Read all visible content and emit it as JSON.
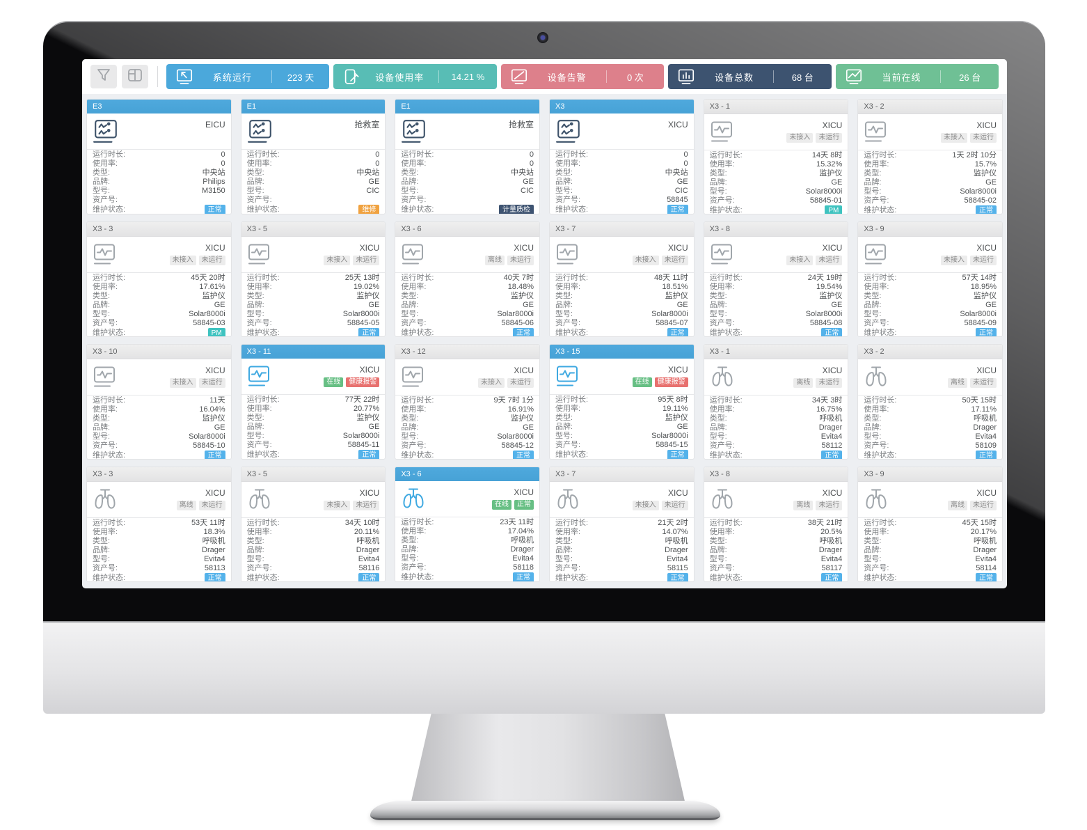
{
  "toolbar": {
    "buttons": [
      {
        "name": "filter-button",
        "icon": "funnel-icon"
      },
      {
        "name": "layout-button",
        "icon": "layout-icon"
      }
    ],
    "stats": [
      {
        "name": "system-runtime",
        "icon": "screen-cursor-icon",
        "label": "系统运行",
        "value": "223 天",
        "color": "#4BA8DB"
      },
      {
        "name": "device-usage",
        "icon": "tablet-pen-icon",
        "label": "设备使用率",
        "value": "14.21 %",
        "color": "#58BDB5"
      },
      {
        "name": "device-alarm",
        "icon": "screen-slash-icon",
        "label": "设备告警",
        "value": "0 次",
        "color": "#DD808B"
      },
      {
        "name": "device-total",
        "icon": "screen-bars-icon",
        "label": "设备总数",
        "value": "68 台",
        "color": "#3D5370"
      },
      {
        "name": "online-now",
        "icon": "screen-check-icon",
        "label": "当前在线",
        "value": "26 台",
        "color": "#6FC095"
      }
    ]
  },
  "field_labels": {
    "runtime": "运行时长:",
    "usage": "使用率:",
    "type": "类型:",
    "brand": "品牌:",
    "model": "型号:",
    "asset": "资产号:",
    "status": "维护状态:"
  },
  "colors": {
    "header_blue": "#4FA9DD",
    "icon": {
      "navy": "#3D5269",
      "grey": "#A0A6AB",
      "blue": "#3FA9E1"
    },
    "status": {
      "normal": "#54B2EA",
      "repair": "#F0A240",
      "metrology": "#3E5371",
      "pm": "#3FC3C0"
    },
    "badge": {
      "grey": {
        "bg": "#ECECEC",
        "fg": "#8A8A8A"
      },
      "green": {
        "bg": "#67BF84",
        "fg": "#FFFFFF"
      },
      "red": {
        "bg": "#E8716F",
        "fg": "#FFFFFF"
      }
    }
  },
  "cards": [
    {
      "id": "E3",
      "header": "blue",
      "icon": "central-station-icon",
      "icon_color": "navy",
      "location": "EICU",
      "badges": [],
      "runtime": "0",
      "usage": "0",
      "type": "中央站",
      "brand": "Philips",
      "model": "M3150",
      "asset": "",
      "status": {
        "text": "正常",
        "style": "normal"
      }
    },
    {
      "id": "E1",
      "header": "blue",
      "icon": "central-station-icon",
      "icon_color": "navy",
      "location": "抢救室",
      "badges": [],
      "runtime": "0",
      "usage": "0",
      "type": "中央站",
      "brand": "GE",
      "model": "CIC",
      "asset": "",
      "status": {
        "text": "维修",
        "style": "repair"
      }
    },
    {
      "id": "E1",
      "header": "blue",
      "icon": "central-station-icon",
      "icon_color": "navy",
      "location": "抢救室",
      "badges": [],
      "runtime": "0",
      "usage": "0",
      "type": "中央站",
      "brand": "GE",
      "model": "CIC",
      "asset": "",
      "status": {
        "text": "计量质检",
        "style": "metrology"
      }
    },
    {
      "id": "X3",
      "header": "blue",
      "icon": "central-station-icon",
      "icon_color": "navy",
      "location": "XICU",
      "badges": [],
      "runtime": "0",
      "usage": "0",
      "type": "中央站",
      "brand": "GE",
      "model": "CIC",
      "asset": "58845",
      "status": {
        "text": "正常",
        "style": "normal"
      }
    },
    {
      "id": "X3 - 1",
      "header": "grey",
      "icon": "patient-monitor-icon",
      "icon_color": "grey",
      "location": "XICU",
      "badges": [
        {
          "text": "未接入",
          "style": "grey"
        },
        {
          "text": "未运行",
          "style": "grey"
        }
      ],
      "runtime": "14天 8时",
      "usage": "15.32%",
      "type": "监护仪",
      "brand": "GE",
      "model": "Solar8000i",
      "asset": "58845-01",
      "status": {
        "text": "PM",
        "style": "pm"
      }
    },
    {
      "id": "X3 - 2",
      "header": "grey",
      "icon": "patient-monitor-icon",
      "icon_color": "grey",
      "location": "XICU",
      "badges": [
        {
          "text": "未接入",
          "style": "grey"
        },
        {
          "text": "未运行",
          "style": "grey"
        }
      ],
      "runtime": "1天 2时 10分",
      "usage": "15.7%",
      "type": "监护仪",
      "brand": "GE",
      "model": "Solar8000i",
      "asset": "58845-02",
      "status": {
        "text": "正常",
        "style": "normal"
      }
    },
    {
      "id": "X3 - 3",
      "header": "grey",
      "icon": "patient-monitor-icon",
      "icon_color": "grey",
      "location": "XICU",
      "badges": [
        {
          "text": "未接入",
          "style": "grey"
        },
        {
          "text": "未运行",
          "style": "grey"
        }
      ],
      "runtime": "45天 20时",
      "usage": "17.61%",
      "type": "监护仪",
      "brand": "GE",
      "model": "Solar8000i",
      "asset": "58845-03",
      "status": {
        "text": "PM",
        "style": "pm"
      }
    },
    {
      "id": "X3 - 5",
      "header": "grey",
      "icon": "patient-monitor-icon",
      "icon_color": "grey",
      "location": "XICU",
      "badges": [
        {
          "text": "未接入",
          "style": "grey"
        },
        {
          "text": "未运行",
          "style": "grey"
        }
      ],
      "runtime": "25天 13时",
      "usage": "19.02%",
      "type": "监护仪",
      "brand": "GE",
      "model": "Solar8000i",
      "asset": "58845-05",
      "status": {
        "text": "正常",
        "style": "normal"
      }
    },
    {
      "id": "X3 - 6",
      "header": "grey",
      "icon": "patient-monitor-icon",
      "icon_color": "grey",
      "location": "XICU",
      "badges": [
        {
          "text": "离线",
          "style": "grey"
        },
        {
          "text": "未运行",
          "style": "grey"
        }
      ],
      "runtime": "40天 7时",
      "usage": "18.48%",
      "type": "监护仪",
      "brand": "GE",
      "model": "Solar8000i",
      "asset": "58845-06",
      "status": {
        "text": "正常",
        "style": "normal"
      }
    },
    {
      "id": "X3 - 7",
      "header": "grey",
      "icon": "patient-monitor-icon",
      "icon_color": "grey",
      "location": "XICU",
      "badges": [
        {
          "text": "未接入",
          "style": "grey"
        },
        {
          "text": "未运行",
          "style": "grey"
        }
      ],
      "runtime": "48天 11时",
      "usage": "18.51%",
      "type": "监护仪",
      "brand": "GE",
      "model": "Solar8000i",
      "asset": "58845-07",
      "status": {
        "text": "正常",
        "style": "normal"
      }
    },
    {
      "id": "X3 - 8",
      "header": "grey",
      "icon": "patient-monitor-icon",
      "icon_color": "grey",
      "location": "XICU",
      "badges": [
        {
          "text": "未接入",
          "style": "grey"
        },
        {
          "text": "未运行",
          "style": "grey"
        }
      ],
      "runtime": "24天 19时",
      "usage": "19.54%",
      "type": "监护仪",
      "brand": "GE",
      "model": "Solar8000i",
      "asset": "58845-08",
      "status": {
        "text": "正常",
        "style": "normal"
      }
    },
    {
      "id": "X3 - 9",
      "header": "grey",
      "icon": "patient-monitor-icon",
      "icon_color": "grey",
      "location": "XICU",
      "badges": [
        {
          "text": "未接入",
          "style": "grey"
        },
        {
          "text": "未运行",
          "style": "grey"
        }
      ],
      "runtime": "57天 14时",
      "usage": "18.95%",
      "type": "监护仪",
      "brand": "GE",
      "model": "Solar8000i",
      "asset": "58845-09",
      "status": {
        "text": "正常",
        "style": "normal"
      }
    },
    {
      "id": "X3 - 10",
      "header": "grey",
      "icon": "patient-monitor-icon",
      "icon_color": "grey",
      "location": "XICU",
      "badges": [
        {
          "text": "未接入",
          "style": "grey"
        },
        {
          "text": "未运行",
          "style": "grey"
        }
      ],
      "runtime": "11天",
      "usage": "16.04%",
      "type": "监护仪",
      "brand": "GE",
      "model": "Solar8000i",
      "asset": "58845-10",
      "status": {
        "text": "正常",
        "style": "normal"
      }
    },
    {
      "id": "X3 - 11",
      "header": "blue",
      "icon": "patient-monitor-icon",
      "icon_color": "blue",
      "location": "XICU",
      "badges": [
        {
          "text": "在线",
          "style": "green"
        },
        {
          "text": "健康报警",
          "style": "red"
        }
      ],
      "runtime": "77天 22时",
      "usage": "20.77%",
      "type": "监护仪",
      "brand": "GE",
      "model": "Solar8000i",
      "asset": "58845-11",
      "status": {
        "text": "正常",
        "style": "normal"
      }
    },
    {
      "id": "X3 - 12",
      "header": "grey",
      "icon": "patient-monitor-icon",
      "icon_color": "grey",
      "location": "XICU",
      "badges": [
        {
          "text": "未接入",
          "style": "grey"
        },
        {
          "text": "未运行",
          "style": "grey"
        }
      ],
      "runtime": "9天 7时 1分",
      "usage": "16.91%",
      "type": "监护仪",
      "brand": "GE",
      "model": "Solar8000i",
      "asset": "58845-12",
      "status": {
        "text": "正常",
        "style": "normal"
      }
    },
    {
      "id": "X3 - 15",
      "header": "blue",
      "icon": "patient-monitor-icon",
      "icon_color": "blue",
      "location": "XICU",
      "badges": [
        {
          "text": "在线",
          "style": "green"
        },
        {
          "text": "健康报警",
          "style": "red"
        }
      ],
      "runtime": "95天 8时",
      "usage": "19.11%",
      "type": "监护仪",
      "brand": "GE",
      "model": "Solar8000i",
      "asset": "58845-15",
      "status": {
        "text": "正常",
        "style": "normal"
      }
    },
    {
      "id": "X3 - 1",
      "header": "grey",
      "icon": "ventilator-icon",
      "icon_color": "grey",
      "location": "XICU",
      "badges": [
        {
          "text": "离线",
          "style": "grey"
        },
        {
          "text": "未运行",
          "style": "grey"
        }
      ],
      "runtime": "34天 3时",
      "usage": "16.75%",
      "type": "呼吸机",
      "brand": "Drager",
      "model": "Evita4",
      "asset": "58112",
      "status": {
        "text": "正常",
        "style": "normal"
      }
    },
    {
      "id": "X3 - 2",
      "header": "grey",
      "icon": "ventilator-icon",
      "icon_color": "grey",
      "location": "XICU",
      "badges": [
        {
          "text": "离线",
          "style": "grey"
        },
        {
          "text": "未运行",
          "style": "grey"
        }
      ],
      "runtime": "50天 15时",
      "usage": "17.11%",
      "type": "呼吸机",
      "brand": "Drager",
      "model": "Evita4",
      "asset": "58109",
      "status": {
        "text": "正常",
        "style": "normal"
      }
    },
    {
      "id": "X3 - 3",
      "header": "grey",
      "icon": "ventilator-icon",
      "icon_color": "grey",
      "location": "XICU",
      "badges": [
        {
          "text": "离线",
          "style": "grey"
        },
        {
          "text": "未运行",
          "style": "grey"
        }
      ],
      "runtime": "53天 11时",
      "usage": "18.3%",
      "type": "呼吸机",
      "brand": "Drager",
      "model": "Evita4",
      "asset": "58113",
      "status": {
        "text": "正常",
        "style": "normal"
      }
    },
    {
      "id": "X3 - 5",
      "header": "grey",
      "icon": "ventilator-icon",
      "icon_color": "grey",
      "location": "XICU",
      "badges": [
        {
          "text": "未接入",
          "style": "grey"
        },
        {
          "text": "未运行",
          "style": "grey"
        }
      ],
      "runtime": "34天 10时",
      "usage": "20.11%",
      "type": "呼吸机",
      "brand": "Drager",
      "model": "Evita4",
      "asset": "58116",
      "status": {
        "text": "正常",
        "style": "normal"
      }
    },
    {
      "id": "X3 - 6",
      "header": "blue",
      "icon": "ventilator-icon",
      "icon_color": "blue",
      "location": "XICU",
      "badges": [
        {
          "text": "在线",
          "style": "green"
        },
        {
          "text": "正常",
          "style": "green"
        }
      ],
      "runtime": "23天 11时",
      "usage": "17.04%",
      "type": "呼吸机",
      "brand": "Drager",
      "model": "Evita4",
      "asset": "58118",
      "status": {
        "text": "正常",
        "style": "normal"
      }
    },
    {
      "id": "X3 - 7",
      "header": "grey",
      "icon": "ventilator-icon",
      "icon_color": "grey",
      "location": "XICU",
      "badges": [
        {
          "text": "未接入",
          "style": "grey"
        },
        {
          "text": "未运行",
          "style": "grey"
        }
      ],
      "runtime": "21天 2时",
      "usage": "14.07%",
      "type": "呼吸机",
      "brand": "Drager",
      "model": "Evita4",
      "asset": "58115",
      "status": {
        "text": "正常",
        "style": "normal"
      }
    },
    {
      "id": "X3 - 8",
      "header": "grey",
      "icon": "ventilator-icon",
      "icon_color": "grey",
      "location": "XICU",
      "badges": [
        {
          "text": "离线",
          "style": "grey"
        },
        {
          "text": "未运行",
          "style": "grey"
        }
      ],
      "runtime": "38天 21时",
      "usage": "20.5%",
      "type": "呼吸机",
      "brand": "Drager",
      "model": "Evita4",
      "asset": "58117",
      "status": {
        "text": "正常",
        "style": "normal"
      }
    },
    {
      "id": "X3 - 9",
      "header": "grey",
      "icon": "ventilator-icon",
      "icon_color": "grey",
      "location": "XICU",
      "badges": [
        {
          "text": "离线",
          "style": "grey"
        },
        {
          "text": "未运行",
          "style": "grey"
        }
      ],
      "runtime": "45天 15时",
      "usage": "20.17%",
      "type": "呼吸机",
      "brand": "Drager",
      "model": "Evita4",
      "asset": "58114",
      "status": {
        "text": "正常",
        "style": "normal"
      }
    }
  ]
}
